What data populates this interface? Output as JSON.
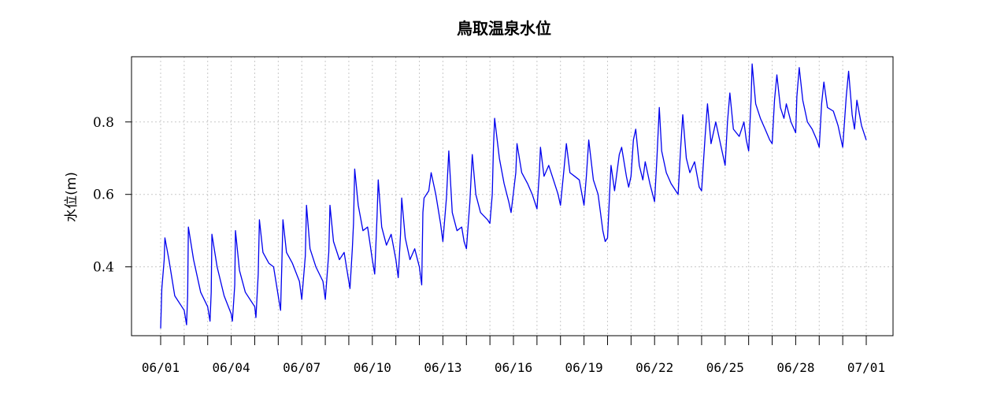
{
  "chart_data": {
    "type": "line",
    "title": "鳥取温泉水位",
    "xlabel": "",
    "ylabel": "水位(m)",
    "x_start": "06/01",
    "x_end": "07/01",
    "x_tick_labels": [
      "06/01",
      "06/04",
      "06/07",
      "06/10",
      "06/13",
      "06/16",
      "06/19",
      "06/22",
      "06/25",
      "06/28",
      "07/01"
    ],
    "y_tick_labels": [
      "0.4",
      "0.6",
      "0.8"
    ],
    "y_ticks": [
      0.4,
      0.6,
      0.8
    ],
    "ylim": [
      0.21,
      0.98
    ],
    "grid": true,
    "series": [
      {
        "color": "#0000ee",
        "points": [
          [
            0.0,
            0.23
          ],
          [
            0.05,
            0.34
          ],
          [
            0.15,
            0.42
          ],
          [
            0.18,
            0.48
          ],
          [
            0.35,
            0.42
          ],
          [
            0.6,
            0.32
          ],
          [
            1.0,
            0.28
          ],
          [
            1.1,
            0.24
          ],
          [
            1.15,
            0.32
          ],
          [
            1.18,
            0.51
          ],
          [
            1.4,
            0.42
          ],
          [
            1.7,
            0.33
          ],
          [
            2.0,
            0.29
          ],
          [
            2.1,
            0.25
          ],
          [
            2.15,
            0.33
          ],
          [
            2.18,
            0.49
          ],
          [
            2.4,
            0.4
          ],
          [
            2.7,
            0.32
          ],
          [
            3.0,
            0.27
          ],
          [
            3.05,
            0.25
          ],
          [
            3.15,
            0.35
          ],
          [
            3.18,
            0.5
          ],
          [
            3.35,
            0.39
          ],
          [
            3.6,
            0.33
          ],
          [
            4.0,
            0.29
          ],
          [
            4.05,
            0.26
          ],
          [
            4.15,
            0.38
          ],
          [
            4.2,
            0.53
          ],
          [
            4.35,
            0.44
          ],
          [
            4.6,
            0.41
          ],
          [
            4.8,
            0.4
          ],
          [
            5.0,
            0.32
          ],
          [
            5.1,
            0.28
          ],
          [
            5.15,
            0.4
          ],
          [
            5.2,
            0.53
          ],
          [
            5.35,
            0.44
          ],
          [
            5.6,
            0.41
          ],
          [
            5.9,
            0.36
          ],
          [
            6.0,
            0.31
          ],
          [
            6.15,
            0.43
          ],
          [
            6.2,
            0.57
          ],
          [
            6.35,
            0.45
          ],
          [
            6.6,
            0.4
          ],
          [
            6.9,
            0.36
          ],
          [
            7.0,
            0.31
          ],
          [
            7.15,
            0.44
          ],
          [
            7.2,
            0.57
          ],
          [
            7.35,
            0.47
          ],
          [
            7.6,
            0.42
          ],
          [
            7.8,
            0.44
          ],
          [
            8.0,
            0.36
          ],
          [
            8.05,
            0.34
          ],
          [
            8.15,
            0.45
          ],
          [
            8.2,
            0.52
          ],
          [
            8.25,
            0.67
          ],
          [
            8.4,
            0.57
          ],
          [
            8.6,
            0.5
          ],
          [
            8.8,
            0.51
          ],
          [
            9.0,
            0.42
          ],
          [
            9.1,
            0.38
          ],
          [
            9.2,
            0.54
          ],
          [
            9.25,
            0.64
          ],
          [
            9.4,
            0.51
          ],
          [
            9.6,
            0.46
          ],
          [
            9.8,
            0.49
          ],
          [
            10.0,
            0.42
          ],
          [
            10.1,
            0.37
          ],
          [
            10.2,
            0.49
          ],
          [
            10.25,
            0.59
          ],
          [
            10.4,
            0.48
          ],
          [
            10.6,
            0.42
          ],
          [
            10.8,
            0.45
          ],
          [
            11.0,
            0.4
          ],
          [
            11.1,
            0.35
          ],
          [
            11.15,
            0.55
          ],
          [
            11.2,
            0.59
          ],
          [
            11.4,
            0.61
          ],
          [
            11.5,
            0.66
          ],
          [
            11.7,
            0.6
          ],
          [
            11.9,
            0.52
          ],
          [
            12.0,
            0.47
          ],
          [
            12.15,
            0.59
          ],
          [
            12.25,
            0.72
          ],
          [
            12.4,
            0.55
          ],
          [
            12.6,
            0.5
          ],
          [
            12.8,
            0.51
          ],
          [
            12.9,
            0.47
          ],
          [
            13.0,
            0.45
          ],
          [
            13.15,
            0.58
          ],
          [
            13.25,
            0.71
          ],
          [
            13.4,
            0.6
          ],
          [
            13.6,
            0.55
          ],
          [
            13.9,
            0.53
          ],
          [
            14.0,
            0.52
          ],
          [
            14.1,
            0.6
          ],
          [
            14.15,
            0.73
          ],
          [
            14.2,
            0.81
          ],
          [
            14.4,
            0.7
          ],
          [
            14.6,
            0.63
          ],
          [
            14.8,
            0.58
          ],
          [
            14.9,
            0.55
          ],
          [
            15.1,
            0.66
          ],
          [
            15.15,
            0.74
          ],
          [
            15.35,
            0.66
          ],
          [
            15.6,
            0.63
          ],
          [
            15.8,
            0.6
          ],
          [
            16.0,
            0.56
          ],
          [
            16.1,
            0.66
          ],
          [
            16.15,
            0.73
          ],
          [
            16.3,
            0.65
          ],
          [
            16.5,
            0.68
          ],
          [
            16.7,
            0.64
          ],
          [
            16.9,
            0.6
          ],
          [
            17.0,
            0.57
          ],
          [
            17.15,
            0.67
          ],
          [
            17.25,
            0.74
          ],
          [
            17.4,
            0.66
          ],
          [
            17.6,
            0.65
          ],
          [
            17.8,
            0.64
          ],
          [
            18.0,
            0.57
          ],
          [
            18.1,
            0.65
          ],
          [
            18.2,
            0.75
          ],
          [
            18.4,
            0.64
          ],
          [
            18.6,
            0.6
          ],
          [
            18.8,
            0.5
          ],
          [
            18.9,
            0.47
          ],
          [
            19.0,
            0.48
          ],
          [
            19.1,
            0.62
          ],
          [
            19.15,
            0.68
          ],
          [
            19.3,
            0.61
          ],
          [
            19.5,
            0.71
          ],
          [
            19.6,
            0.73
          ],
          [
            19.8,
            0.65
          ],
          [
            19.9,
            0.62
          ],
          [
            20.0,
            0.65
          ],
          [
            20.1,
            0.75
          ],
          [
            20.2,
            0.78
          ],
          [
            20.35,
            0.68
          ],
          [
            20.5,
            0.64
          ],
          [
            20.6,
            0.69
          ],
          [
            20.8,
            0.63
          ],
          [
            21.0,
            0.58
          ],
          [
            21.1,
            0.7
          ],
          [
            21.2,
            0.84
          ],
          [
            21.3,
            0.72
          ],
          [
            21.5,
            0.66
          ],
          [
            21.7,
            0.63
          ],
          [
            21.9,
            0.61
          ],
          [
            22.0,
            0.6
          ],
          [
            22.1,
            0.72
          ],
          [
            22.2,
            0.82
          ],
          [
            22.35,
            0.7
          ],
          [
            22.5,
            0.66
          ],
          [
            22.7,
            0.69
          ],
          [
            22.9,
            0.62
          ],
          [
            23.0,
            0.61
          ],
          [
            23.15,
            0.76
          ],
          [
            23.25,
            0.85
          ],
          [
            23.4,
            0.74
          ],
          [
            23.6,
            0.8
          ],
          [
            23.8,
            0.74
          ],
          [
            24.0,
            0.68
          ],
          [
            24.1,
            0.8
          ],
          [
            24.2,
            0.88
          ],
          [
            24.35,
            0.78
          ],
          [
            24.6,
            0.76
          ],
          [
            24.8,
            0.8
          ],
          [
            24.9,
            0.75
          ],
          [
            25.0,
            0.72
          ],
          [
            25.1,
            0.86
          ],
          [
            25.15,
            0.96
          ],
          [
            25.3,
            0.85
          ],
          [
            25.5,
            0.81
          ],
          [
            25.7,
            0.78
          ],
          [
            25.9,
            0.75
          ],
          [
            26.0,
            0.74
          ],
          [
            26.1,
            0.86
          ],
          [
            26.2,
            0.93
          ],
          [
            26.35,
            0.84
          ],
          [
            26.5,
            0.81
          ],
          [
            26.6,
            0.85
          ],
          [
            26.8,
            0.8
          ],
          [
            27.0,
            0.77
          ],
          [
            27.05,
            0.87
          ],
          [
            27.15,
            0.95
          ],
          [
            27.3,
            0.86
          ],
          [
            27.5,
            0.8
          ],
          [
            27.7,
            0.78
          ],
          [
            27.9,
            0.75
          ],
          [
            28.0,
            0.73
          ],
          [
            28.1,
            0.85
          ],
          [
            28.2,
            0.91
          ],
          [
            28.35,
            0.84
          ],
          [
            28.6,
            0.83
          ],
          [
            28.8,
            0.79
          ],
          [
            29.0,
            0.73
          ],
          [
            29.15,
            0.87
          ],
          [
            29.25,
            0.94
          ],
          [
            29.4,
            0.82
          ],
          [
            29.5,
            0.78
          ],
          [
            29.6,
            0.86
          ],
          [
            29.8,
            0.79
          ],
          [
            30.0,
            0.75
          ]
        ]
      }
    ]
  }
}
